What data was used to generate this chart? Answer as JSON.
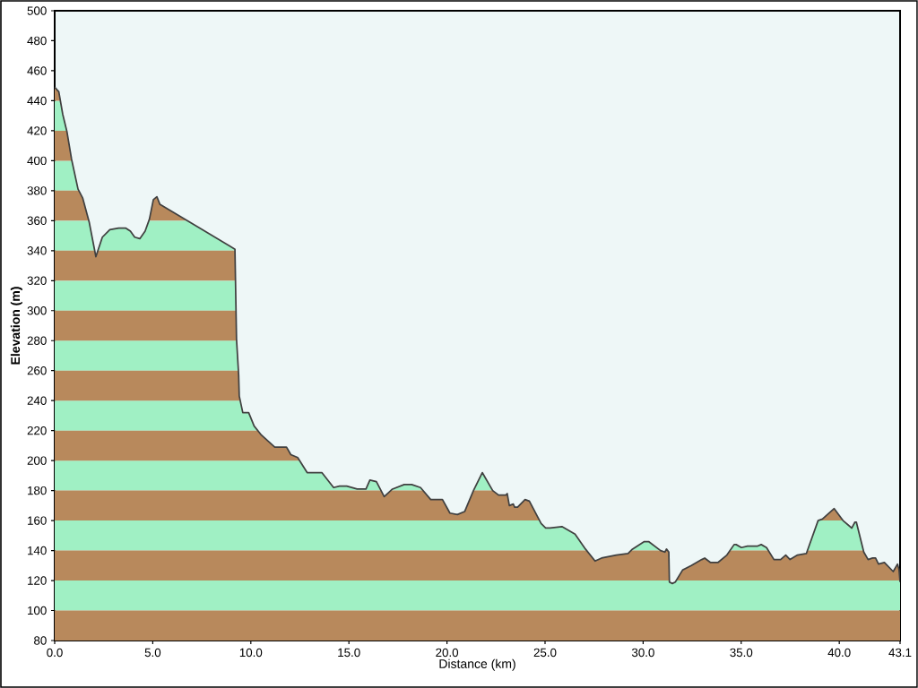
{
  "chart_data": {
    "type": "area",
    "xlabel": "Distance (km)",
    "ylabel": "Elevation (m)",
    "x": [
      0,
      0.21,
      0.41,
      0.63,
      0.86,
      1.19,
      1.43,
      1.76,
      2.1,
      2.43,
      2.81,
      3.26,
      3.63,
      3.86,
      4.08,
      4.34,
      4.61,
      4.83,
      5.03,
      5.21,
      5.36,
      9.19,
      9.27,
      9.38,
      9.41,
      9.59,
      9.89,
      10.17,
      10.54,
      11.22,
      11.82,
      12.04,
      12.39,
      12.87,
      13.62,
      14.22,
      14.52,
      14.89,
      15.42,
      15.87,
      16.07,
      16.4,
      16.8,
      17.22,
      17.82,
      18.2,
      18.65,
      19.17,
      19.77,
      20.15,
      20.53,
      20.9,
      21.35,
      21.8,
      22.33,
      22.63,
      23.0,
      23.07,
      23.18,
      23.38,
      23.45,
      23.6,
      23.98,
      24.2,
      24.8,
      25.03,
      25.26,
      25.86,
      26.53,
      27.06,
      27.55,
      27.88,
      28.63,
      29.23,
      29.46,
      30.06,
      30.28,
      30.89,
      31.11,
      31.19,
      31.31,
      31.34,
      31.49,
      31.64,
      32.01,
      32.46,
      32.99,
      33.14,
      33.44,
      33.81,
      34.27,
      34.64,
      34.74,
      35.01,
      35.32,
      35.84,
      36.02,
      36.29,
      36.67,
      37.01,
      37.27,
      37.49,
      37.87,
      38.32,
      38.92,
      39.14,
      39.74,
      40.19,
      40.64,
      40.8,
      40.87,
      41.25,
      41.47,
      41.7,
      41.85,
      42.0,
      42.3,
      42.75,
      42.97,
      43.05,
      43.1
    ],
    "values": [
      449,
      446,
      431,
      419,
      401,
      381,
      375,
      359,
      336,
      349,
      354,
      355,
      355,
      353,
      349,
      348,
      353,
      361,
      374,
      376,
      371,
      341,
      281,
      257,
      243,
      232,
      232,
      223,
      217,
      209,
      209,
      204,
      202,
      192,
      192,
      182,
      183,
      183,
      181,
      181,
      187,
      186,
      176,
      181,
      184,
      184,
      182,
      174,
      174,
      165,
      164,
      166,
      180,
      192,
      180,
      177,
      177,
      178,
      170,
      171,
      169,
      169,
      174,
      173,
      158,
      155,
      155,
      156,
      151,
      141,
      133,
      135,
      137,
      138,
      141,
      146,
      146,
      140,
      139,
      141,
      139,
      119,
      118,
      119,
      127,
      130,
      134,
      135,
      132,
      132,
      137,
      144,
      144,
      142,
      143,
      143,
      144,
      142,
      134,
      134,
      137,
      134,
      137,
      138,
      160,
      161,
      168,
      160,
      155,
      159,
      159,
      139,
      134,
      135,
      135,
      131,
      132,
      126,
      131,
      127,
      119
    ],
    "color": "#b8895c",
    "bands": [
      {
        "axis": "y",
        "from": 100,
        "to": 120,
        "color": "#a0f0c4"
      },
      {
        "axis": "y",
        "from": 140,
        "to": 160,
        "color": "#a0f0c4"
      },
      {
        "axis": "y",
        "from": 180,
        "to": 200,
        "color": "#a0f0c4"
      },
      {
        "axis": "y",
        "from": 220,
        "to": 240,
        "color": "#a0f0c4"
      },
      {
        "axis": "y",
        "from": 260,
        "to": 280,
        "color": "#a0f0c4"
      },
      {
        "axis": "y",
        "from": 300,
        "to": 320,
        "color": "#a0f0c4"
      },
      {
        "axis": "y",
        "from": 340,
        "to": 360,
        "color": "#a0f0c4"
      },
      {
        "axis": "y",
        "from": 380,
        "to": 400,
        "color": "#a0f0c4"
      },
      {
        "axis": "y",
        "from": 420,
        "to": 440,
        "color": "#a0f0c4"
      }
    ],
    "xlim": [
      0,
      43.1
    ],
    "ylim": [
      80,
      500
    ],
    "xticks": [
      {
        "value": 0,
        "label": "0.0"
      },
      {
        "value": 5,
        "label": "5.0"
      },
      {
        "value": 10,
        "label": "10.0"
      },
      {
        "value": 15,
        "label": "15.0"
      },
      {
        "value": 20,
        "label": "20.0"
      },
      {
        "value": 25,
        "label": "25.0"
      },
      {
        "value": 30,
        "label": "30.0"
      },
      {
        "value": 35,
        "label": "35.0"
      },
      {
        "value": 40,
        "label": "40.0"
      },
      43.1
    ],
    "yticks": [
      80,
      100,
      120,
      140,
      160,
      180,
      200,
      220,
      240,
      260,
      280,
      300,
      320,
      340,
      360,
      380,
      400,
      420,
      440,
      460,
      480,
      500
    ]
  }
}
